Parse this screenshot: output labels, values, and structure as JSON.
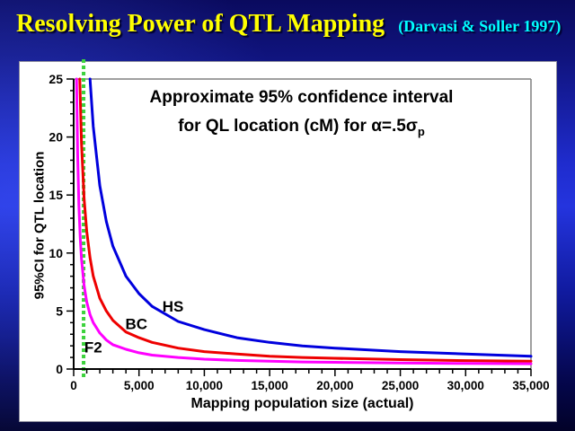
{
  "slide": {
    "title": "Resolving Power of QTL Mapping",
    "citation": "(Darvasi & Soller 1997)"
  },
  "colors": {
    "title_text": "#FFFF00",
    "citation_text": "#00FFFF",
    "panel": "#FFFFFF",
    "axis": "#000000",
    "plot_frame": "#808080",
    "ref_line": "#3CD23C"
  },
  "chart_data": {
    "type": "line",
    "title_line1": "Approximate 95% confidence interval",
    "title_line2": "for QL location (cM) for α=.5σ",
    "title_line2_subscript": "p",
    "xlabel": "Mapping population size (actual)",
    "ylabel": "95%CI for QTL location",
    "xlim": [
      0,
      35000
    ],
    "ylim": [
      0,
      25
    ],
    "grid": false,
    "legend": "inline-labels",
    "x_ticks": [
      {
        "value": 0,
        "label": "0"
      },
      {
        "value": 5000,
        "label": "5,000"
      },
      {
        "value": 10000,
        "label": "10,000"
      },
      {
        "value": 15000,
        "label": "15,000"
      },
      {
        "value": 20000,
        "label": "20,000"
      },
      {
        "value": 25000,
        "label": "25,000"
      },
      {
        "value": 30000,
        "label": "30,000"
      },
      {
        "value": 35000,
        "label": "35,000"
      }
    ],
    "x_minor_step": 1000,
    "y_ticks": [
      {
        "value": 0,
        "label": "0"
      },
      {
        "value": 5,
        "label": "5"
      },
      {
        "value": 10,
        "label": "10"
      },
      {
        "value": 15,
        "label": "15"
      },
      {
        "value": 20,
        "label": "20"
      },
      {
        "value": 25,
        "label": "25"
      }
    ],
    "y_minor_step": 1,
    "ref_line": {
      "x": 760,
      "color": "#3CD23C",
      "style": "dotted"
    },
    "series": [
      {
        "name": "HS",
        "color": "#0000DD",
        "label_at": {
          "x": 7600,
          "y": 5.4
        },
        "points": [
          [
            1253,
            25
          ],
          [
            1500,
            20.9
          ],
          [
            2000,
            15.8
          ],
          [
            2500,
            12.7
          ],
          [
            3000,
            10.6
          ],
          [
            4000,
            8.0
          ],
          [
            5000,
            6.5
          ],
          [
            6000,
            5.4
          ],
          [
            8000,
            4.1
          ],
          [
            10000,
            3.4
          ],
          [
            12500,
            2.7
          ],
          [
            15000,
            2.3
          ],
          [
            17500,
            2.0
          ],
          [
            20000,
            1.8
          ],
          [
            25000,
            1.5
          ],
          [
            30000,
            1.3
          ],
          [
            35000,
            1.1
          ]
        ]
      },
      {
        "name": "BC",
        "color": "#EE0000",
        "label_at": {
          "x": 4800,
          "y": 3.9
        },
        "points": [
          [
            467,
            25
          ],
          [
            600,
            19.5
          ],
          [
            800,
            14.7
          ],
          [
            1000,
            11.9
          ],
          [
            1250,
            9.6
          ],
          [
            1500,
            8.0
          ],
          [
            2000,
            6.1
          ],
          [
            2500,
            5.0
          ],
          [
            3000,
            4.2
          ],
          [
            4000,
            3.2
          ],
          [
            5000,
            2.7
          ],
          [
            6000,
            2.3
          ],
          [
            8000,
            1.8
          ],
          [
            10000,
            1.5
          ],
          [
            12500,
            1.3
          ],
          [
            15000,
            1.1
          ],
          [
            17500,
            1.0
          ],
          [
            20000,
            0.93
          ],
          [
            25000,
            0.81
          ],
          [
            30000,
            0.73
          ],
          [
            35000,
            0.68
          ]
        ]
      },
      {
        "name": "F2",
        "color": "#FF00FF",
        "label_at": {
          "x": 1500,
          "y": 1.9
        },
        "points": [
          [
            223,
            25
          ],
          [
            300,
            18.6
          ],
          [
            400,
            14.1
          ],
          [
            500,
            11.3
          ],
          [
            600,
            9.5
          ],
          [
            800,
            7.2
          ],
          [
            1000,
            5.8
          ],
          [
            1250,
            4.7
          ],
          [
            1500,
            4.0
          ],
          [
            2000,
            3.1
          ],
          [
            2500,
            2.5
          ],
          [
            3000,
            2.1
          ],
          [
            4000,
            1.7
          ],
          [
            5000,
            1.4
          ],
          [
            6000,
            1.2
          ],
          [
            8000,
            1.0
          ],
          [
            10000,
            0.85
          ],
          [
            12500,
            0.74
          ],
          [
            15000,
            0.67
          ],
          [
            17500,
            0.61
          ],
          [
            20000,
            0.58
          ],
          [
            25000,
            0.52
          ],
          [
            30000,
            0.48
          ],
          [
            35000,
            0.46
          ]
        ]
      }
    ]
  }
}
